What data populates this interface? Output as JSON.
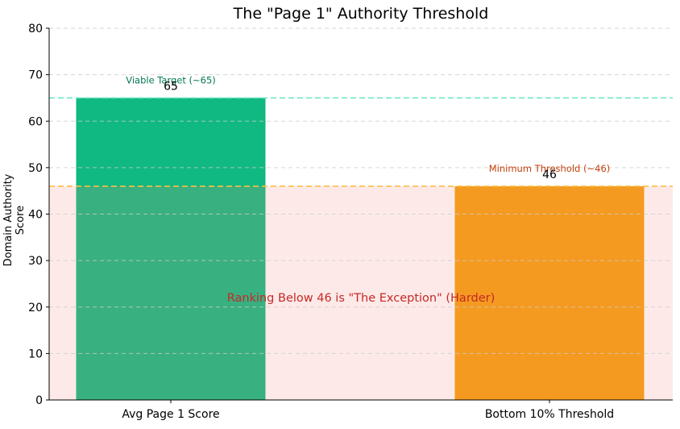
{
  "chart_data": {
    "type": "bar",
    "title": "The \"Page 1\" Authority Threshold",
    "xlabel": "",
    "ylabel": "Domain Authority Score",
    "ylim": [
      0,
      80
    ],
    "yticks": [
      0,
      10,
      20,
      30,
      40,
      50,
      60,
      70,
      80
    ],
    "grid": {
      "axis": "y",
      "style": "dashed"
    },
    "categories": [
      "Avg Page 1 Score",
      "Bottom 10% Threshold"
    ],
    "values": [
      65,
      46
    ],
    "bar_colors": [
      "#10b981",
      "#f59e0b"
    ],
    "data_labels": [
      "65",
      "46"
    ],
    "reference_lines": [
      {
        "y": 65,
        "label": "Viable Target (~65)",
        "color": "#10b981",
        "style": "dashed"
      },
      {
        "y": 46,
        "label": "Minimum Threshold (~46)",
        "color": "#f59e0b",
        "style": "dashed"
      }
    ],
    "shaded_region": {
      "y_from": 0,
      "y_to": 46,
      "color": "#fde8e8",
      "label": "Ranking Below 46 is \"The Exception\" (Harder)",
      "label_color": "#c62828"
    }
  }
}
